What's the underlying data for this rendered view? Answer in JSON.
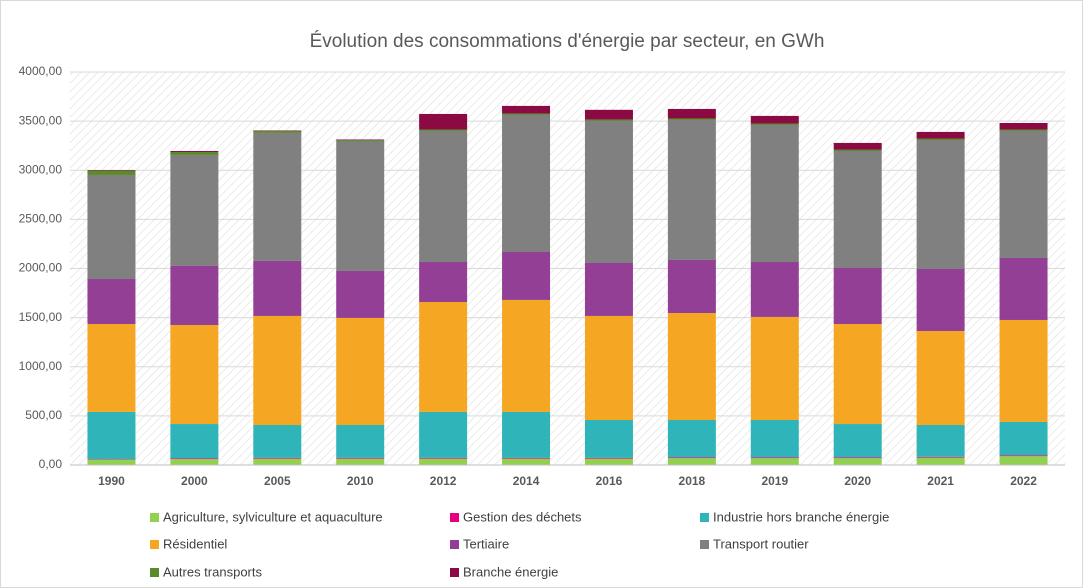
{
  "chart_data": {
    "type": "stacked_bar",
    "title": "Évolution des consommations d'énergie par secteur, en GWh",
    "categories": [
      "1990",
      "2000",
      "2005",
      "2010",
      "2012",
      "2014",
      "2016",
      "2018",
      "2019",
      "2020",
      "2021",
      "2022"
    ],
    "series": [
      {
        "name": "Agriculture, sylviculture et aquaculture",
        "color": "#92d050",
        "values": [
          55,
          60,
          65,
          65,
          65,
          65,
          65,
          70,
          70,
          70,
          75,
          90
        ]
      },
      {
        "name": "Gestion des déchets",
        "color": "#e6007e",
        "values": [
          5,
          8,
          8,
          8,
          8,
          8,
          8,
          8,
          8,
          8,
          8,
          8
        ]
      },
      {
        "name": "Industrie hors branche énergie",
        "color": "#2fb5b9",
        "values": [
          480,
          349,
          334,
          334,
          467,
          467,
          385,
          380,
          380,
          339,
          324,
          340
        ]
      },
      {
        "name": "Résidentiel",
        "color": "#f5a623",
        "values": [
          895,
          1008,
          1110,
          1090,
          1119,
          1140,
          1059,
          1089,
          1049,
          1018,
          957,
          1038
        ]
      },
      {
        "name": "Tertiaire",
        "color": "#943f96",
        "values": [
          458,
          601,
          560,
          478,
          407,
          488,
          539,
          540,
          559,
          570,
          631,
          631
        ]
      },
      {
        "name": "Transport routier",
        "color": "#808080",
        "values": [
          1059,
          1130,
          1303,
          1323,
          1334,
          1395,
          1446,
          1425,
          1395,
          1191,
          1313,
          1293
        ]
      },
      {
        "name": "Autres transports",
        "color": "#5a8a2a",
        "values": [
          45,
          30,
          20,
          10,
          15,
          15,
          15,
          15,
          15,
          15,
          15,
          15
        ]
      },
      {
        "name": "Branche énergie",
        "color": "#8b0a44",
        "values": [
          5,
          10,
          5,
          5,
          158,
          77,
          98,
          97,
          77,
          67,
          67,
          66
        ]
      }
    ],
    "ylim": [
      0,
      4000
    ],
    "yticks": [
      {
        "value": 0,
        "label": "0,00"
      },
      {
        "value": 500,
        "label": "500,00"
      },
      {
        "value": 1000,
        "label": "1000,00"
      },
      {
        "value": 1500,
        "label": "1500,00"
      },
      {
        "value": 2000,
        "label": "2000,00"
      },
      {
        "value": 2500,
        "label": "2500,00"
      },
      {
        "value": 3000,
        "label": "3000,00"
      },
      {
        "value": 3500,
        "label": "3500,00"
      },
      {
        "value": 4000,
        "label": "4000,00"
      }
    ],
    "grid": true
  }
}
